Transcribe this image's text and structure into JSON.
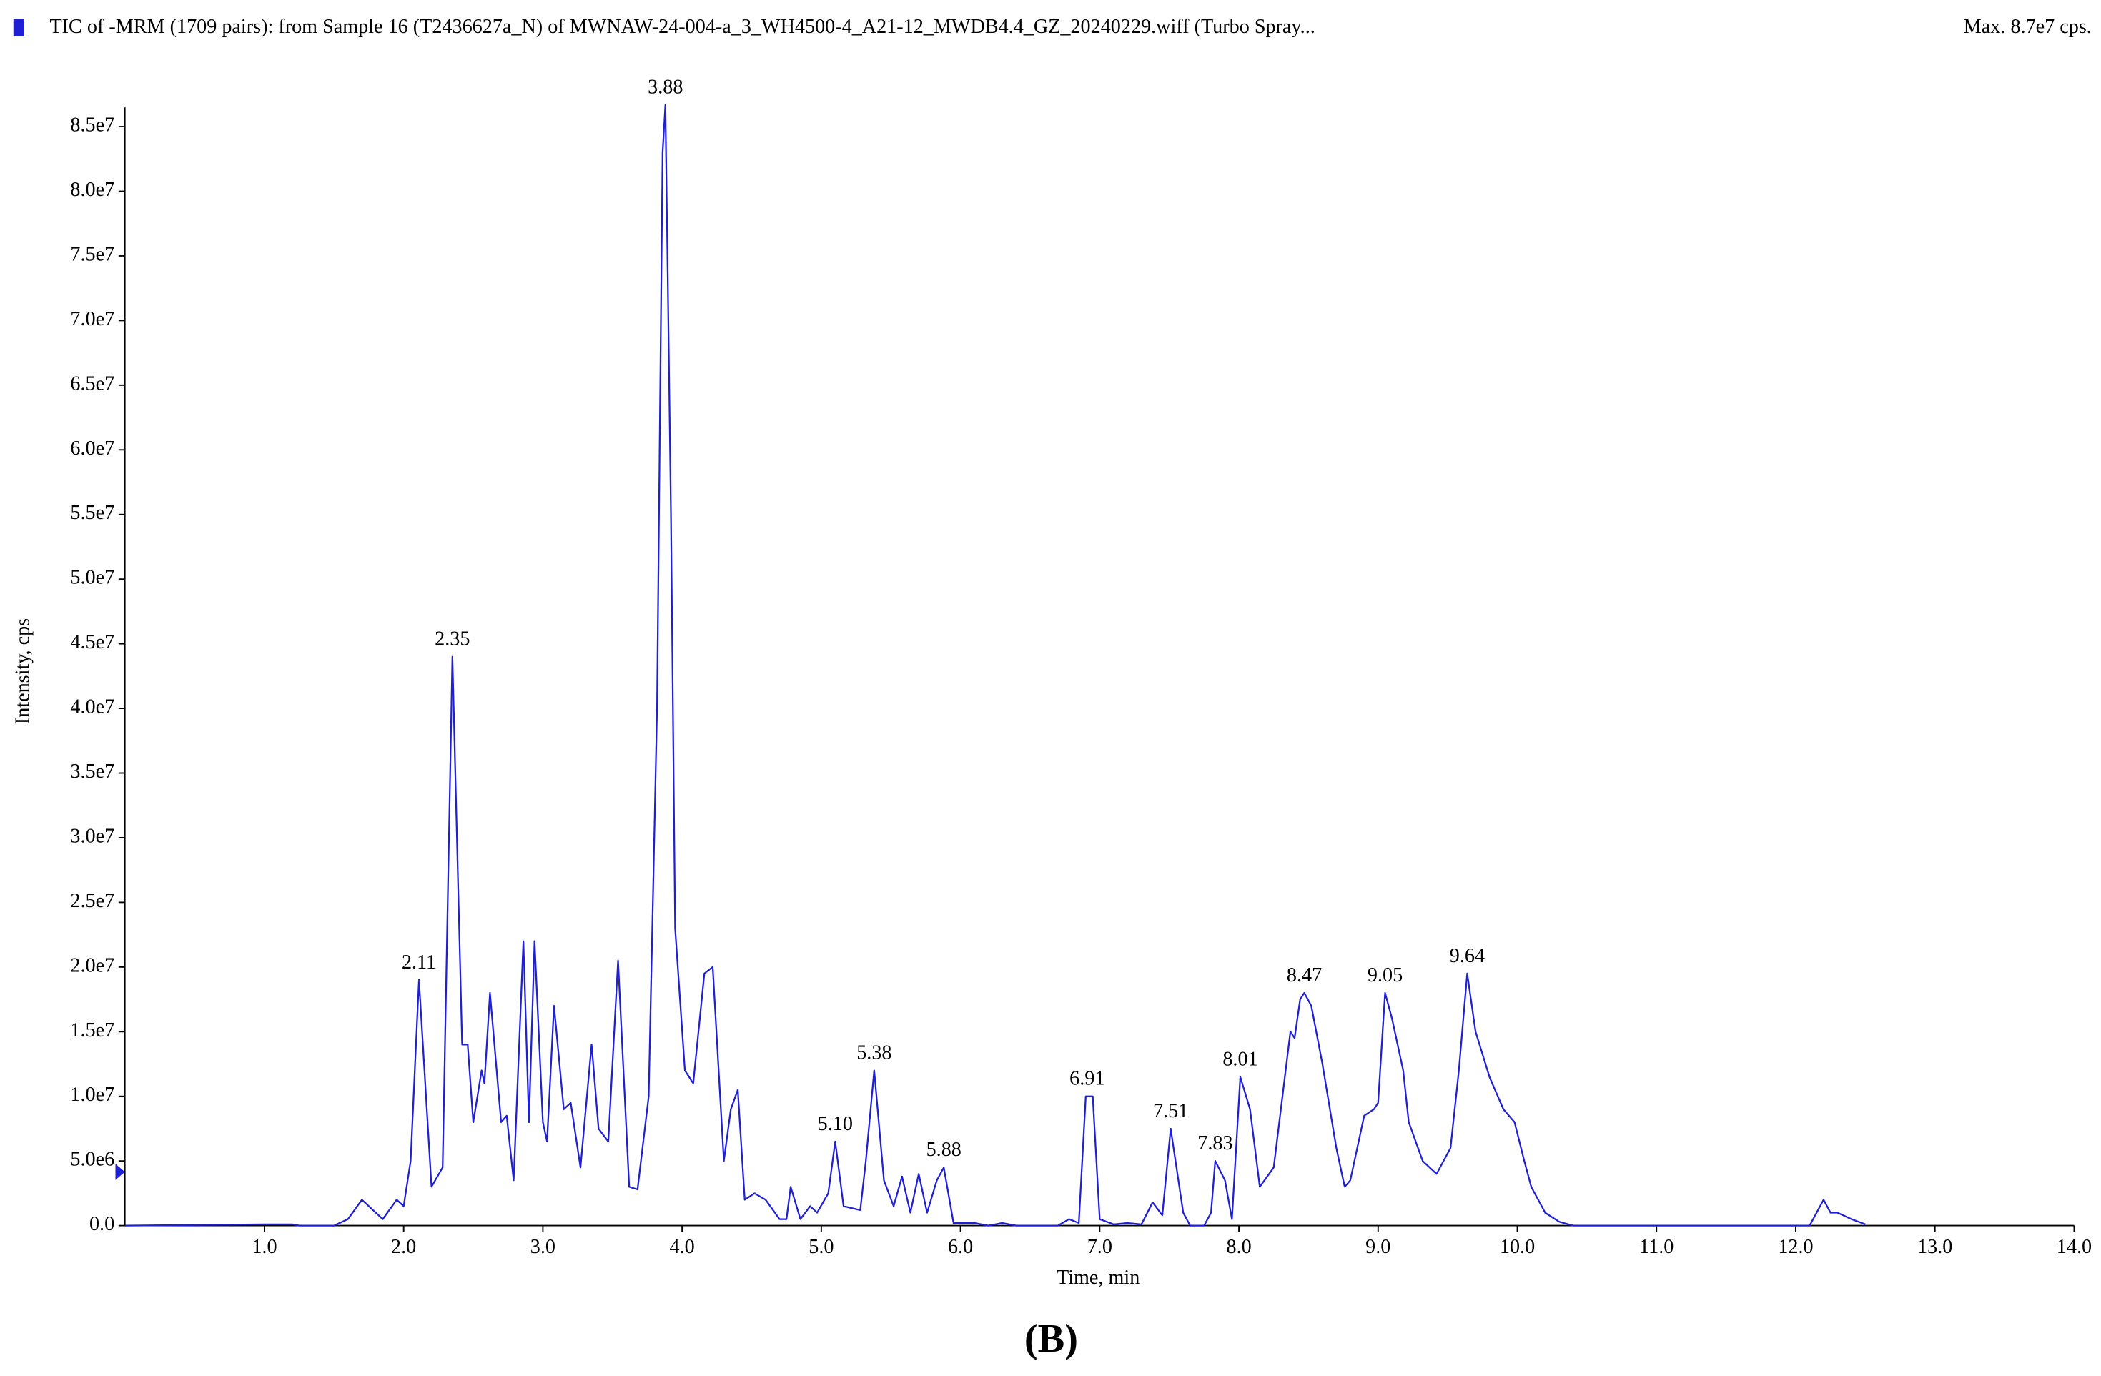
{
  "chart_data": {
    "type": "line",
    "title": "TIC of -MRM (1709 pairs): from Sample 16 (T2436627a_N) of MWNAW-24-004-a_3_WH4500-4_A21-12_MWDB4.4_GZ_20240229.wiff (Turbo Spray...",
    "subtitle": "Max. 8.7e7 cps.",
    "x_label": "Time, min",
    "y_label": "Intensity, cps",
    "caption": "(B)",
    "xlim": [
      0,
      14
    ],
    "ylim": [
      0,
      87000000.0
    ],
    "xticks": [
      {
        "value": 1,
        "label": "1.0"
      },
      {
        "value": 2,
        "label": "2.0"
      },
      {
        "value": 3,
        "label": "3.0"
      },
      {
        "value": 4,
        "label": "4.0"
      },
      {
        "value": 5,
        "label": "5.0"
      },
      {
        "value": 6,
        "label": "6.0"
      },
      {
        "value": 7,
        "label": "7.0"
      },
      {
        "value": 8,
        "label": "8.0"
      },
      {
        "value": 9,
        "label": "9.0"
      },
      {
        "value": 10,
        "label": "10.0"
      },
      {
        "value": 11,
        "label": "11.0"
      },
      {
        "value": 12,
        "label": "12.0"
      },
      {
        "value": 13,
        "label": "13.0"
      },
      {
        "value": 14,
        "label": "14.0"
      }
    ],
    "yticks": [
      {
        "value": 0,
        "label": "0.0"
      },
      {
        "value": 5000000,
        "label": "5.0e6"
      },
      {
        "value": 10000000,
        "label": "1.0e7"
      },
      {
        "value": 15000000,
        "label": "1.5e7"
      },
      {
        "value": 20000000,
        "label": "2.0e7"
      },
      {
        "value": 25000000,
        "label": "2.5e7"
      },
      {
        "value": 30000000,
        "label": "3.0e7"
      },
      {
        "value": 35000000,
        "label": "3.5e7"
      },
      {
        "value": 40000000,
        "label": "4.0e7"
      },
      {
        "value": 45000000,
        "label": "4.5e7"
      },
      {
        "value": 50000000,
        "label": "5.0e7"
      },
      {
        "value": 55000000,
        "label": "5.5e7"
      },
      {
        "value": 60000000,
        "label": "6.0e7"
      },
      {
        "value": 65000000,
        "label": "6.5e7"
      },
      {
        "value": 70000000,
        "label": "7.0e7"
      },
      {
        "value": 75000000,
        "label": "7.5e7"
      },
      {
        "value": 80000000,
        "label": "8.0e7"
      },
      {
        "value": 85000000,
        "label": "8.5e7"
      }
    ],
    "x": [
      0,
      1.0,
      1.2,
      1.25,
      1.5,
      1.6,
      1.7,
      1.8,
      1.85,
      1.95,
      2.0,
      2.05,
      2.11,
      2.2,
      2.28,
      2.35,
      2.42,
      2.46,
      2.5,
      2.56,
      2.58,
      2.62,
      2.7,
      2.74,
      2.79,
      2.86,
      2.9,
      2.94,
      3.0,
      3.03,
      3.08,
      3.15,
      3.2,
      3.27,
      3.35,
      3.4,
      3.47,
      3.54,
      3.62,
      3.68,
      3.76,
      3.82,
      3.86,
      3.88,
      3.92,
      3.95,
      4.02,
      4.08,
      4.16,
      4.22,
      4.3,
      4.35,
      4.4,
      4.45,
      4.52,
      4.6,
      4.7,
      4.75,
      4.78,
      4.85,
      4.92,
      4.97,
      5.05,
      5.1,
      5.16,
      5.28,
      5.32,
      5.38,
      5.45,
      5.52,
      5.58,
      5.64,
      5.7,
      5.76,
      5.83,
      5.88,
      5.95,
      6.1,
      6.2,
      6.3,
      6.4,
      6.7,
      6.78,
      6.85,
      6.9,
      6.95,
      7.0,
      7.1,
      7.2,
      7.3,
      7.38,
      7.45,
      7.51,
      7.6,
      7.65,
      7.75,
      7.8,
      7.83,
      7.9,
      7.95,
      8.01,
      8.08,
      8.15,
      8.25,
      8.37,
      8.4,
      8.44,
      8.47,
      8.52,
      8.6,
      8.7,
      8.76,
      8.8,
      8.9,
      8.97,
      9.0,
      9.05,
      9.1,
      9.18,
      9.22,
      9.32,
      9.42,
      9.52,
      9.58,
      9.64,
      9.7,
      9.8,
      9.9,
      9.98,
      10.05,
      10.1,
      10.2,
      10.3,
      10.4,
      12.1,
      12.2,
      12.25,
      12.3,
      12.4,
      12.5
    ],
    "series": [
      {
        "name": "TIC of -MRM (1709 pairs)",
        "color": "#1f1fd6",
        "values": [
          0,
          100000.0,
          100000.0,
          0,
          0,
          500000.0,
          2000000.0,
          1000000.0,
          500000.0,
          2000000.0,
          1500000.0,
          5000000.0,
          19000000.0,
          3000000.0,
          4500000.0,
          44000000.0,
          14000000.0,
          14000000.0,
          8000000.0,
          12000000.0,
          11000000.0,
          18000000.0,
          8000000.0,
          8500000.0,
          3500000.0,
          22000000.0,
          8000000.0,
          22000000.0,
          8000000.0,
          6500000.0,
          17000000.0,
          9000000.0,
          9500000.0,
          4500000.0,
          14000000.0,
          7500000.0,
          6500000.0,
          20500000.0,
          3000000.0,
          2800000.0,
          10000000.0,
          40000000.0,
          83000000.0,
          86700000.0,
          55000000.0,
          23000000.0,
          12000000.0,
          11000000.0,
          19500000.0,
          20000000.0,
          5000000.0,
          9000000.0,
          10500000.0,
          2000000.0,
          2500000.0,
          2000000.0,
          500000.0,
          500000.0,
          3000000.0,
          500000.0,
          1500000.0,
          1000000.0,
          2500000.0,
          6500000.0,
          1500000.0,
          1200000.0,
          5000000.0,
          12000000.0,
          3500000.0,
          1500000.0,
          3800000.0,
          1000000.0,
          4000000.0,
          1000000.0,
          3500000.0,
          4500000.0,
          200000.0,
          200000.0,
          0,
          200000.0,
          0,
          0,
          500000.0,
          200000.0,
          10000000.0,
          10000000.0,
          500000.0,
          100000.0,
          200000.0,
          100000.0,
          1800000.0,
          800000.0,
          7500000.0,
          1000000.0,
          0,
          0,
          1000000.0,
          5000000.0,
          3500000.0,
          500000.0,
          11500000.0,
          9000000.0,
          3000000.0,
          4500000.0,
          15000000.0,
          14500000.0,
          17500000.0,
          18000000.0,
          17000000.0,
          12500000.0,
          6000000.0,
          3000000.0,
          3500000.0,
          8500000.0,
          9000000.0,
          9500000.0,
          18000000.0,
          16000000.0,
          12000000.0,
          8000000.0,
          5000000.0,
          4000000.0,
          6000000.0,
          12000000.0,
          19500000.0,
          15000000.0,
          11500000.0,
          9000000.0,
          8000000.0,
          5000000.0,
          3000000.0,
          1000000.0,
          300000.0,
          0,
          0,
          2000000.0,
          1000000.0,
          1000000.0,
          500000.0,
          100000.0
        ]
      }
    ],
    "peak_labels": [
      {
        "x": 2.11,
        "y": 19000000.0,
        "label": "2.11"
      },
      {
        "x": 2.35,
        "y": 44000000.0,
        "label": "2.35"
      },
      {
        "x": 3.88,
        "y": 86700000.0,
        "label": "3.88"
      },
      {
        "x": 5.1,
        "y": 6500000.0,
        "label": "5.10"
      },
      {
        "x": 5.38,
        "y": 12000000.0,
        "label": "5.38"
      },
      {
        "x": 5.88,
        "y": 4500000.0,
        "label": "5.88"
      },
      {
        "x": 6.91,
        "y": 10000000.0,
        "label": "6.91"
      },
      {
        "x": 7.51,
        "y": 7500000.0,
        "label": "7.51"
      },
      {
        "x": 7.83,
        "y": 5000000.0,
        "label": "7.83"
      },
      {
        "x": 8.01,
        "y": 11500000.0,
        "label": "8.01"
      },
      {
        "x": 8.47,
        "y": 18000000.0,
        "label": "8.47"
      },
      {
        "x": 9.05,
        "y": 18000000.0,
        "label": "9.05"
      },
      {
        "x": 9.64,
        "y": 19500000.0,
        "label": "9.64"
      }
    ]
  }
}
